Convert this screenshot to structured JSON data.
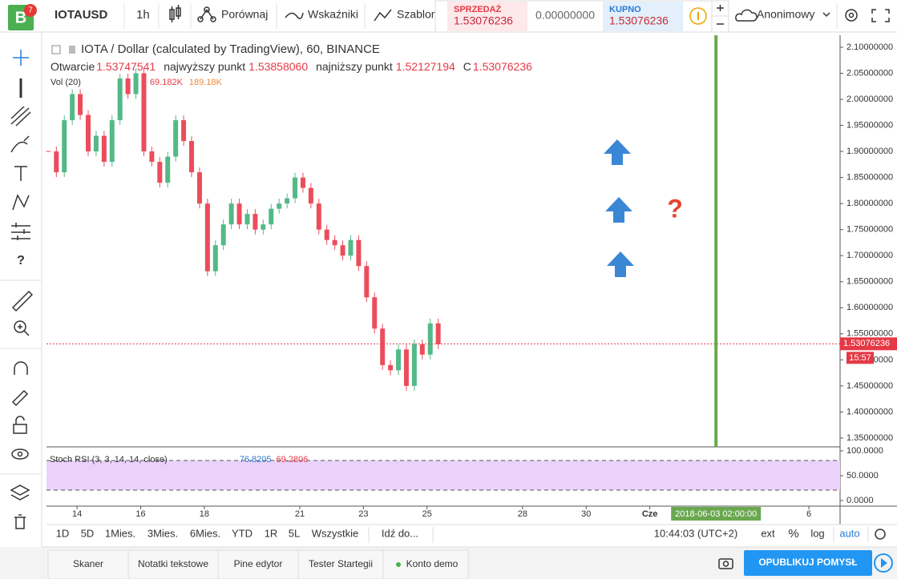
{
  "top_bar": {
    "logo": "B",
    "badge": "7",
    "symbol": "IOTAUSD",
    "interval": "1h",
    "compare": "Porównaj",
    "indicators": "Wskaźniki",
    "template": "Szablon",
    "sell_label": "SPRZEDAŻ",
    "sell_price": "1.53076236",
    "spread": "0.00000000",
    "buy_label": "KUPNO",
    "buy_price": "1.53076236",
    "user": "Anonimowy"
  },
  "left_toolbar": {
    "help": "?"
  },
  "legend": {
    "title": "IOTA / Dollar (calculated by TradingView), 60, BINANCE",
    "open_label": "Otwarcie",
    "open": "1.53747541",
    "high_label": "najwyższy punkt",
    "high": "1.53858060",
    "low_label": "najniższy punkt",
    "low": "1.52127194",
    "close_label": "C",
    "close": "1.53076236",
    "vol_label": "Vol (20)",
    "vol_1": "69.182K",
    "vol_2": "189.18K"
  },
  "annotation": "?",
  "chart_data": {
    "type": "candlestick",
    "x": [
      13.1,
      13.35,
      13.6,
      13.85,
      14.1,
      14.35,
      14.6,
      14.85,
      15.1,
      15.35,
      15.6,
      15.85,
      16.1,
      16.35,
      16.6,
      16.85,
      17.1,
      17.35,
      17.6,
      17.85,
      18.1,
      18.35,
      18.6,
      18.85,
      19.1,
      19.35,
      19.6,
      19.85,
      20.1,
      20.35,
      20.6,
      20.85,
      21.1,
      21.35,
      21.6,
      21.85,
      22.1,
      22.35,
      22.6,
      22.85,
      23.1,
      23.35,
      23.6,
      23.85,
      24.1,
      24.35,
      24.6,
      24.85,
      25.1,
      25.35
    ],
    "values": [
      1.9,
      1.86,
      1.96,
      2.01,
      1.97,
      1.9,
      1.93,
      1.88,
      1.96,
      2.04,
      2.01,
      2.05,
      1.9,
      1.88,
      1.84,
      1.89,
      1.96,
      1.92,
      1.86,
      1.8,
      1.67,
      1.72,
      1.76,
      1.8,
      1.76,
      1.78,
      1.75,
      1.76,
      1.79,
      1.8,
      1.81,
      1.85,
      1.83,
      1.8,
      1.75,
      1.73,
      1.72,
      1.7,
      1.73,
      1.68,
      1.62,
      1.56,
      1.49,
      1.48,
      1.52,
      1.45,
      1.53,
      1.51,
      1.57,
      1.53
    ],
    "ylim": [
      1.333,
      2.123
    ],
    "yticks": [
      {
        "value": 1.35,
        "label": "1.35000000"
      },
      {
        "value": 1.4,
        "label": "1.40000000"
      },
      {
        "value": 1.45,
        "label": "1.45000000"
      },
      {
        "value": 1.5,
        "label": "1.50000000"
      },
      {
        "value": 1.55,
        "label": "1.55000000"
      },
      {
        "value": 1.6,
        "label": "1.60000000"
      },
      {
        "value": 1.65,
        "label": "1.65000000"
      },
      {
        "value": 1.7,
        "label": "1.70000000"
      },
      {
        "value": 1.75,
        "label": "1.75000000"
      },
      {
        "value": 1.8,
        "label": "1.80000000"
      },
      {
        "value": 1.85,
        "label": "1.85000000"
      },
      {
        "value": 1.9,
        "label": "1.90000000"
      },
      {
        "value": 1.95,
        "label": "1.95000000"
      },
      {
        "value": 2.0,
        "label": "2.00000000"
      },
      {
        "value": 2.05,
        "label": "2.05000000"
      },
      {
        "value": 2.1,
        "label": "2.10000000"
      }
    ],
    "xlim": [
      13.04,
      37.98
    ],
    "xticks": [
      14,
      16,
      18,
      21,
      23,
      25,
      28,
      30,
      {
        "value": 32,
        "label": "Cze"
      },
      {
        "value": 37,
        "label": "6"
      }
    ],
    "last_price": {
      "value": 1.53076236,
      "label": "1.53076236"
    },
    "countdown": "15:57",
    "crosshair_x": 34.08,
    "crosshair_label": "2018-06-03 02:00:00",
    "up_color": "#53b987",
    "down_color": "#eb4d5c"
  },
  "stoch": {
    "title": "Stoch RSI (3, 3, 14, 14, close)",
    "k": "76.8205",
    "d": "69.2806",
    "ylim": [
      -11.3,
      108.06
    ],
    "yticks": [
      {
        "value": 100,
        "label": "100.0000"
      },
      {
        "value": 50,
        "label": "50.0000"
      },
      {
        "value": 0,
        "label": "0.0000"
      }
    ]
  },
  "bottom_bar": {
    "ranges": [
      "1D",
      "5D",
      "1Mies.",
      "3Mies.",
      "6Mies.",
      "YTD",
      "1R",
      "5L",
      "Wszystkie"
    ],
    "goto": "Idź do...",
    "time": "10:44:03 (UTC+2)",
    "ext": "ext",
    "percent": "%",
    "log": "log",
    "auto": "auto"
  },
  "tabs": [
    "Skaner",
    "Notatki tekstowe",
    "Pine edytor",
    "Tester Startegii",
    "Konto demo"
  ],
  "publish": "OPUBLIKUJ POMYSŁ"
}
